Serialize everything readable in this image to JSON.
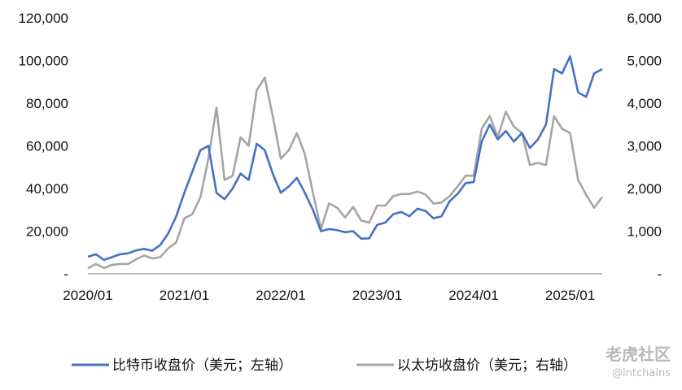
{
  "chart_data": {
    "type": "line",
    "x_ticks": [
      "2020/01",
      "2021/01",
      "2022/01",
      "2023/01",
      "2024/01",
      "2025/01"
    ],
    "y_left": {
      "ticks": [
        "-",
        "20,000",
        "40,000",
        "60,000",
        "80,000",
        "100,000",
        "120,000"
      ],
      "range": [
        0,
        120000
      ]
    },
    "y_right": {
      "ticks": [
        "-",
        "1,000",
        "2,000",
        "3,000",
        "4,000",
        "5,000",
        "6,000"
      ],
      "range": [
        0,
        6000
      ]
    },
    "series": [
      {
        "name": "比特币收盘价（美元；左轴）",
        "color": "#4472c4",
        "axis": "left",
        "x": [
          "2020-01",
          "2020-02",
          "2020-03",
          "2020-04",
          "2020-05",
          "2020-06",
          "2020-07",
          "2020-08",
          "2020-09",
          "2020-10",
          "2020-11",
          "2020-12",
          "2021-01",
          "2021-02",
          "2021-03",
          "2021-04",
          "2021-05",
          "2021-06",
          "2021-07",
          "2021-08",
          "2021-09",
          "2021-10",
          "2021-11",
          "2021-12",
          "2022-01",
          "2022-02",
          "2022-03",
          "2022-04",
          "2022-05",
          "2022-06",
          "2022-07",
          "2022-08",
          "2022-09",
          "2022-10",
          "2022-11",
          "2022-12",
          "2023-01",
          "2023-02",
          "2023-03",
          "2023-04",
          "2023-05",
          "2023-06",
          "2023-07",
          "2023-08",
          "2023-09",
          "2023-10",
          "2023-11",
          "2023-12",
          "2024-01",
          "2024-02",
          "2024-03",
          "2024-04",
          "2024-05",
          "2024-06",
          "2024-07",
          "2024-08",
          "2024-09",
          "2024-10",
          "2024-11",
          "2024-12",
          "2025-01",
          "2025-02",
          "2025-03",
          "2025-04",
          "2025-05"
        ],
        "values": [
          8000,
          9200,
          6500,
          7800,
          9200,
          9600,
          11000,
          11700,
          10800,
          13500,
          19000,
          27000,
          38000,
          48000,
          58000,
          60000,
          38000,
          35000,
          40000,
          47000,
          44000,
          61000,
          58000,
          47000,
          38000,
          41000,
          45000,
          38000,
          30000,
          20000,
          21000,
          20500,
          19500,
          20000,
          16500,
          16600,
          23000,
          24000,
          28000,
          29000,
          27000,
          30500,
          29500,
          26000,
          27000,
          34000,
          37500,
          42500,
          43000,
          62000,
          70000,
          63000,
          67000,
          62000,
          66000,
          59000,
          63000,
          70000,
          96000,
          94000,
          102000,
          85000,
          83000,
          94000,
          96000
        ]
      },
      {
        "name": "以太坊收盘价（美元；右轴）",
        "color": "#a5a5a5",
        "axis": "right",
        "x": [
          "2020-01",
          "2020-02",
          "2020-03",
          "2020-04",
          "2020-05",
          "2020-06",
          "2020-07",
          "2020-08",
          "2020-09",
          "2020-10",
          "2020-11",
          "2020-12",
          "2021-01",
          "2021-02",
          "2021-03",
          "2021-04",
          "2021-05",
          "2021-06",
          "2021-07",
          "2021-08",
          "2021-09",
          "2021-10",
          "2021-11",
          "2021-12",
          "2022-01",
          "2022-02",
          "2022-03",
          "2022-04",
          "2022-05",
          "2022-06",
          "2022-07",
          "2022-08",
          "2022-09",
          "2022-10",
          "2022-11",
          "2022-12",
          "2023-01",
          "2023-02",
          "2023-03",
          "2023-04",
          "2023-05",
          "2023-06",
          "2023-07",
          "2023-08",
          "2023-09",
          "2023-10",
          "2023-11",
          "2023-12",
          "2024-01",
          "2024-02",
          "2024-03",
          "2024-04",
          "2024-05",
          "2024-06",
          "2024-07",
          "2024-08",
          "2024-09",
          "2024-10",
          "2024-11",
          "2024-12",
          "2025-01",
          "2025-02",
          "2025-03",
          "2025-04",
          "2025-05"
        ],
        "values": [
          130,
          230,
          135,
          210,
          230,
          230,
          340,
          430,
          360,
          390,
          600,
          740,
          1300,
          1400,
          1800,
          2700,
          3900,
          2200,
          2300,
          3200,
          3000,
          4300,
          4600,
          3700,
          2700,
          2900,
          3300,
          2800,
          1900,
          1050,
          1650,
          1550,
          1320,
          1570,
          1250,
          1200,
          1600,
          1600,
          1820,
          1870,
          1870,
          1930,
          1860,
          1650,
          1670,
          1820,
          2050,
          2300,
          2300,
          3400,
          3700,
          3200,
          3800,
          3450,
          3300,
          2550,
          2600,
          2550,
          3700,
          3400,
          3300,
          2200,
          1850,
          1550,
          1800
        ]
      }
    ],
    "xlabel": "",
    "ylabel": ""
  },
  "watermark": {
    "title": "老虎社区",
    "handle": "@lntchains"
  }
}
